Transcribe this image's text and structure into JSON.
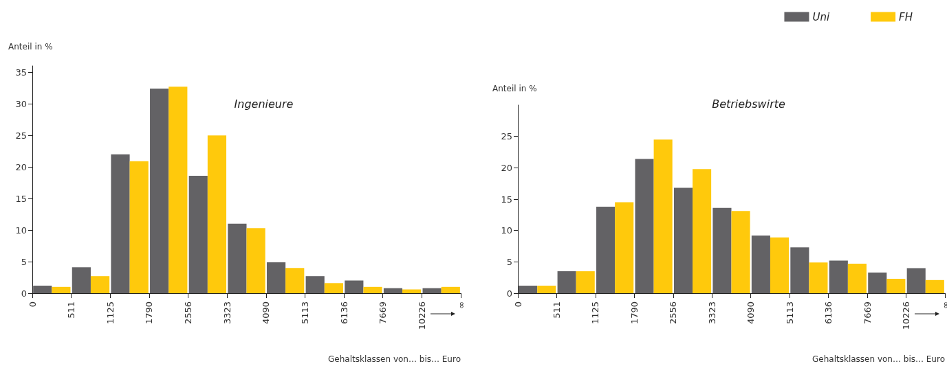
{
  "chart_data": [
    {
      "type": "bar",
      "title": "Ingenieure",
      "ylabel": "Anteil in %",
      "xlabel": "Gehaltsklassen von… bis… Euro",
      "categories": [
        null,
        null,
        null,
        null,
        null,
        null,
        null,
        null,
        null,
        null,
        null
      ],
      "annotations": [
        "0",
        "511",
        "1125",
        "1790",
        "2556",
        "3323",
        "4090",
        "5113",
        "6136",
        "7669",
        "10226",
        "∞"
      ],
      "series": [
        {
          "color": "#636265",
          "values": [
            1.2,
            4.1,
            22,
            32.4,
            18.6,
            11,
            4.9,
            2.7,
            2.0,
            0.8,
            0.8
          ]
        },
        {
          "color": "#ffc90c",
          "values": [
            1.0,
            2.7,
            20.9,
            32.7,
            25,
            10.3,
            4.0,
            1.6,
            1.0,
            0.6,
            1.0
          ]
        }
      ],
      "ylim": [
        0,
        36
      ],
      "yticks": [
        0,
        5,
        10,
        15,
        20,
        25,
        30,
        35
      ],
      "grid": false,
      "legend": false
    },
    {
      "type": "bar",
      "title": "Betriebswirte",
      "ylabel": "Anteil in %",
      "xlabel": "Gehaltsklassen von… bis… Euro",
      "categories": [
        null,
        null,
        null,
        null,
        null,
        null,
        null,
        null,
        null,
        null,
        null
      ],
      "annotations": [
        "0",
        "511",
        "1125",
        "1790",
        "2556",
        "3323",
        "4090",
        "5113",
        "6136",
        "7669",
        "10226",
        "∞"
      ],
      "series": [
        {
          "name": "Uni",
          "color": "#636265",
          "values": [
            1.2,
            3.5,
            13.8,
            21.4,
            16.8,
            13.6,
            9.2,
            7.3,
            5.2,
            3.3,
            4.0
          ]
        },
        {
          "name": "FH",
          "color": "#ffc90c",
          "values": [
            1.2,
            3.5,
            14.5,
            24.5,
            19.8,
            13.1,
            8.9,
            4.9,
            4.7,
            2.3,
            2.1
          ]
        }
      ],
      "ylim": [
        0,
        30
      ],
      "yticks": [
        0,
        5,
        10,
        15,
        20,
        25
      ],
      "grid": false,
      "legend": "top right"
    }
  ]
}
